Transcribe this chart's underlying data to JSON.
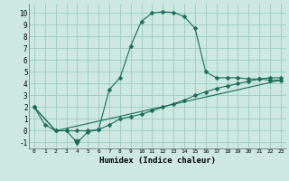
{
  "xlabel": "Humidex (Indice chaleur)",
  "ylabel": "",
  "xlim": [
    -0.5,
    23.5
  ],
  "ylim": [
    -1.5,
    10.8
  ],
  "xticks": [
    0,
    1,
    2,
    3,
    4,
    5,
    6,
    7,
    8,
    9,
    10,
    11,
    12,
    13,
    14,
    15,
    16,
    17,
    18,
    19,
    20,
    21,
    22,
    23
  ],
  "yticks": [
    -1,
    0,
    1,
    2,
    3,
    4,
    5,
    6,
    7,
    8,
    9,
    10
  ],
  "bg_color": "#cce8e0",
  "grid_color": "#99ccbb",
  "line_color": "#1a6b5a",
  "line1_x": [
    0,
    1,
    2,
    3,
    4,
    5,
    6,
    7,
    8,
    9,
    10,
    11,
    12,
    13,
    14,
    15,
    16,
    17,
    18,
    19,
    20,
    21,
    22,
    23
  ],
  "line1_y": [
    2.0,
    0.5,
    0.0,
    0.0,
    -1.0,
    -0.1,
    0.1,
    3.5,
    4.5,
    7.2,
    9.3,
    10.0,
    10.1,
    10.05,
    9.7,
    8.7,
    5.0,
    4.5,
    4.5,
    4.5,
    4.4,
    4.4,
    4.3,
    4.3
  ],
  "line2_x": [
    0,
    2,
    3,
    4,
    5,
    6,
    7,
    8,
    9,
    10,
    11,
    12,
    13,
    14,
    15,
    16,
    17,
    18,
    19,
    20,
    21,
    22,
    23
  ],
  "line2_y": [
    2.0,
    0.0,
    0.0,
    0.0,
    0.0,
    0.1,
    0.5,
    1.0,
    1.2,
    1.4,
    1.7,
    2.0,
    2.3,
    2.6,
    3.0,
    3.3,
    3.6,
    3.8,
    4.0,
    4.2,
    4.4,
    4.5,
    4.5
  ],
  "line3_x": [
    0,
    2,
    23
  ],
  "line3_y": [
    2.0,
    0.0,
    4.3
  ],
  "marker_main": "D",
  "marker_tri_x": 4,
  "marker_tri_y": -1.0,
  "marker_size": 2.5
}
